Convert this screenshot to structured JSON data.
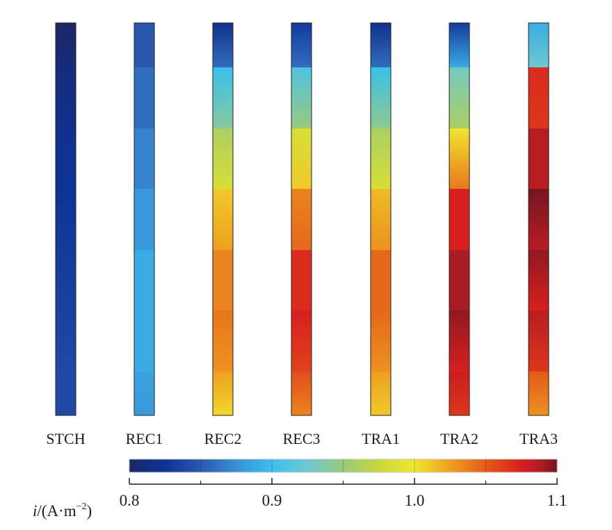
{
  "chart_data": {
    "type": "heatmap",
    "title": "",
    "colorbar": {
      "label_var": "i",
      "label_unit": "/(A·m",
      "label_exp": "−2",
      "label_close": ")",
      "range": [
        0.8,
        1.1
      ],
      "tick_labels": [
        "0.8",
        "0.9",
        "1.0",
        "1.1"
      ],
      "tick_values": [
        0.8,
        0.9,
        1.0,
        1.1
      ],
      "minor_ticks": [
        0.85,
        0.95,
        1.05
      ],
      "colormap": [
        [
          0.8,
          "#1c2766"
        ],
        [
          0.825,
          "#0e3397"
        ],
        [
          0.85,
          "#2a58ae"
        ],
        [
          0.875,
          "#3a8fd6"
        ],
        [
          0.9,
          "#3ac0ec"
        ],
        [
          0.925,
          "#6ec8d2"
        ],
        [
          0.95,
          "#98ca7c"
        ],
        [
          0.975,
          "#c8d83c"
        ],
        [
          1.0,
          "#f0e630"
        ],
        [
          1.025,
          "#eea020"
        ],
        [
          1.05,
          "#e45a1a"
        ],
        [
          1.075,
          "#d81f1e"
        ],
        [
          1.09,
          "#a81c24"
        ],
        [
          1.1,
          "#761520"
        ]
      ]
    },
    "segments_note": "7 vertical segments per bar, each [top value, bottom value] in A·m^-2",
    "series": [
      {
        "name": "STCH",
        "segments": [
          [
            0.8,
            0.81
          ],
          [
            0.81,
            0.82
          ],
          [
            0.82,
            0.825
          ],
          [
            0.825,
            0.83
          ],
          [
            0.83,
            0.835
          ],
          [
            0.835,
            0.84
          ],
          [
            0.84,
            0.84
          ]
        ]
      },
      {
        "name": "REC1",
        "segments": [
          [
            0.85,
            0.85
          ],
          [
            0.86,
            0.86
          ],
          [
            0.87,
            0.87
          ],
          [
            0.88,
            0.88
          ],
          [
            0.89,
            0.89
          ],
          [
            0.89,
            0.89
          ],
          [
            0.885,
            0.88
          ]
        ]
      },
      {
        "name": "REC2",
        "segments": [
          [
            0.82,
            0.86
          ],
          [
            0.9,
            0.94
          ],
          [
            0.96,
            0.985
          ],
          [
            1.01,
            1.025
          ],
          [
            1.035,
            1.035
          ],
          [
            1.04,
            1.03
          ],
          [
            1.025,
            1.005
          ]
        ]
      },
      {
        "name": "REC3",
        "segments": [
          [
            0.83,
            0.86
          ],
          [
            0.91,
            0.95
          ],
          [
            0.985,
            1.01
          ],
          [
            1.035,
            1.045
          ],
          [
            1.07,
            1.07
          ],
          [
            1.075,
            1.06
          ],
          [
            1.055,
            1.035
          ]
        ]
      },
      {
        "name": "TRA1",
        "segments": [
          [
            0.82,
            0.86
          ],
          [
            0.9,
            0.945
          ],
          [
            0.96,
            0.985
          ],
          [
            1.015,
            1.03
          ],
          [
            1.045,
            1.045
          ],
          [
            1.045,
            1.03
          ],
          [
            1.025,
            1.01
          ]
        ]
      },
      {
        "name": "TRA2",
        "segments": [
          [
            0.83,
            0.89
          ],
          [
            0.93,
            0.96
          ],
          [
            1.0,
            1.04
          ],
          [
            1.075,
            1.075
          ],
          [
            1.09,
            1.09
          ],
          [
            1.095,
            1.075
          ],
          [
            1.08,
            1.065
          ]
        ]
      },
      {
        "name": "TRA3",
        "segments": [
          [
            0.89,
            0.925
          ],
          [
            1.07,
            1.065
          ],
          [
            1.085,
            1.085
          ],
          [
            1.1,
            1.085
          ],
          [
            1.095,
            1.075
          ],
          [
            1.085,
            1.065
          ],
          [
            1.05,
            1.03
          ]
        ]
      }
    ]
  }
}
